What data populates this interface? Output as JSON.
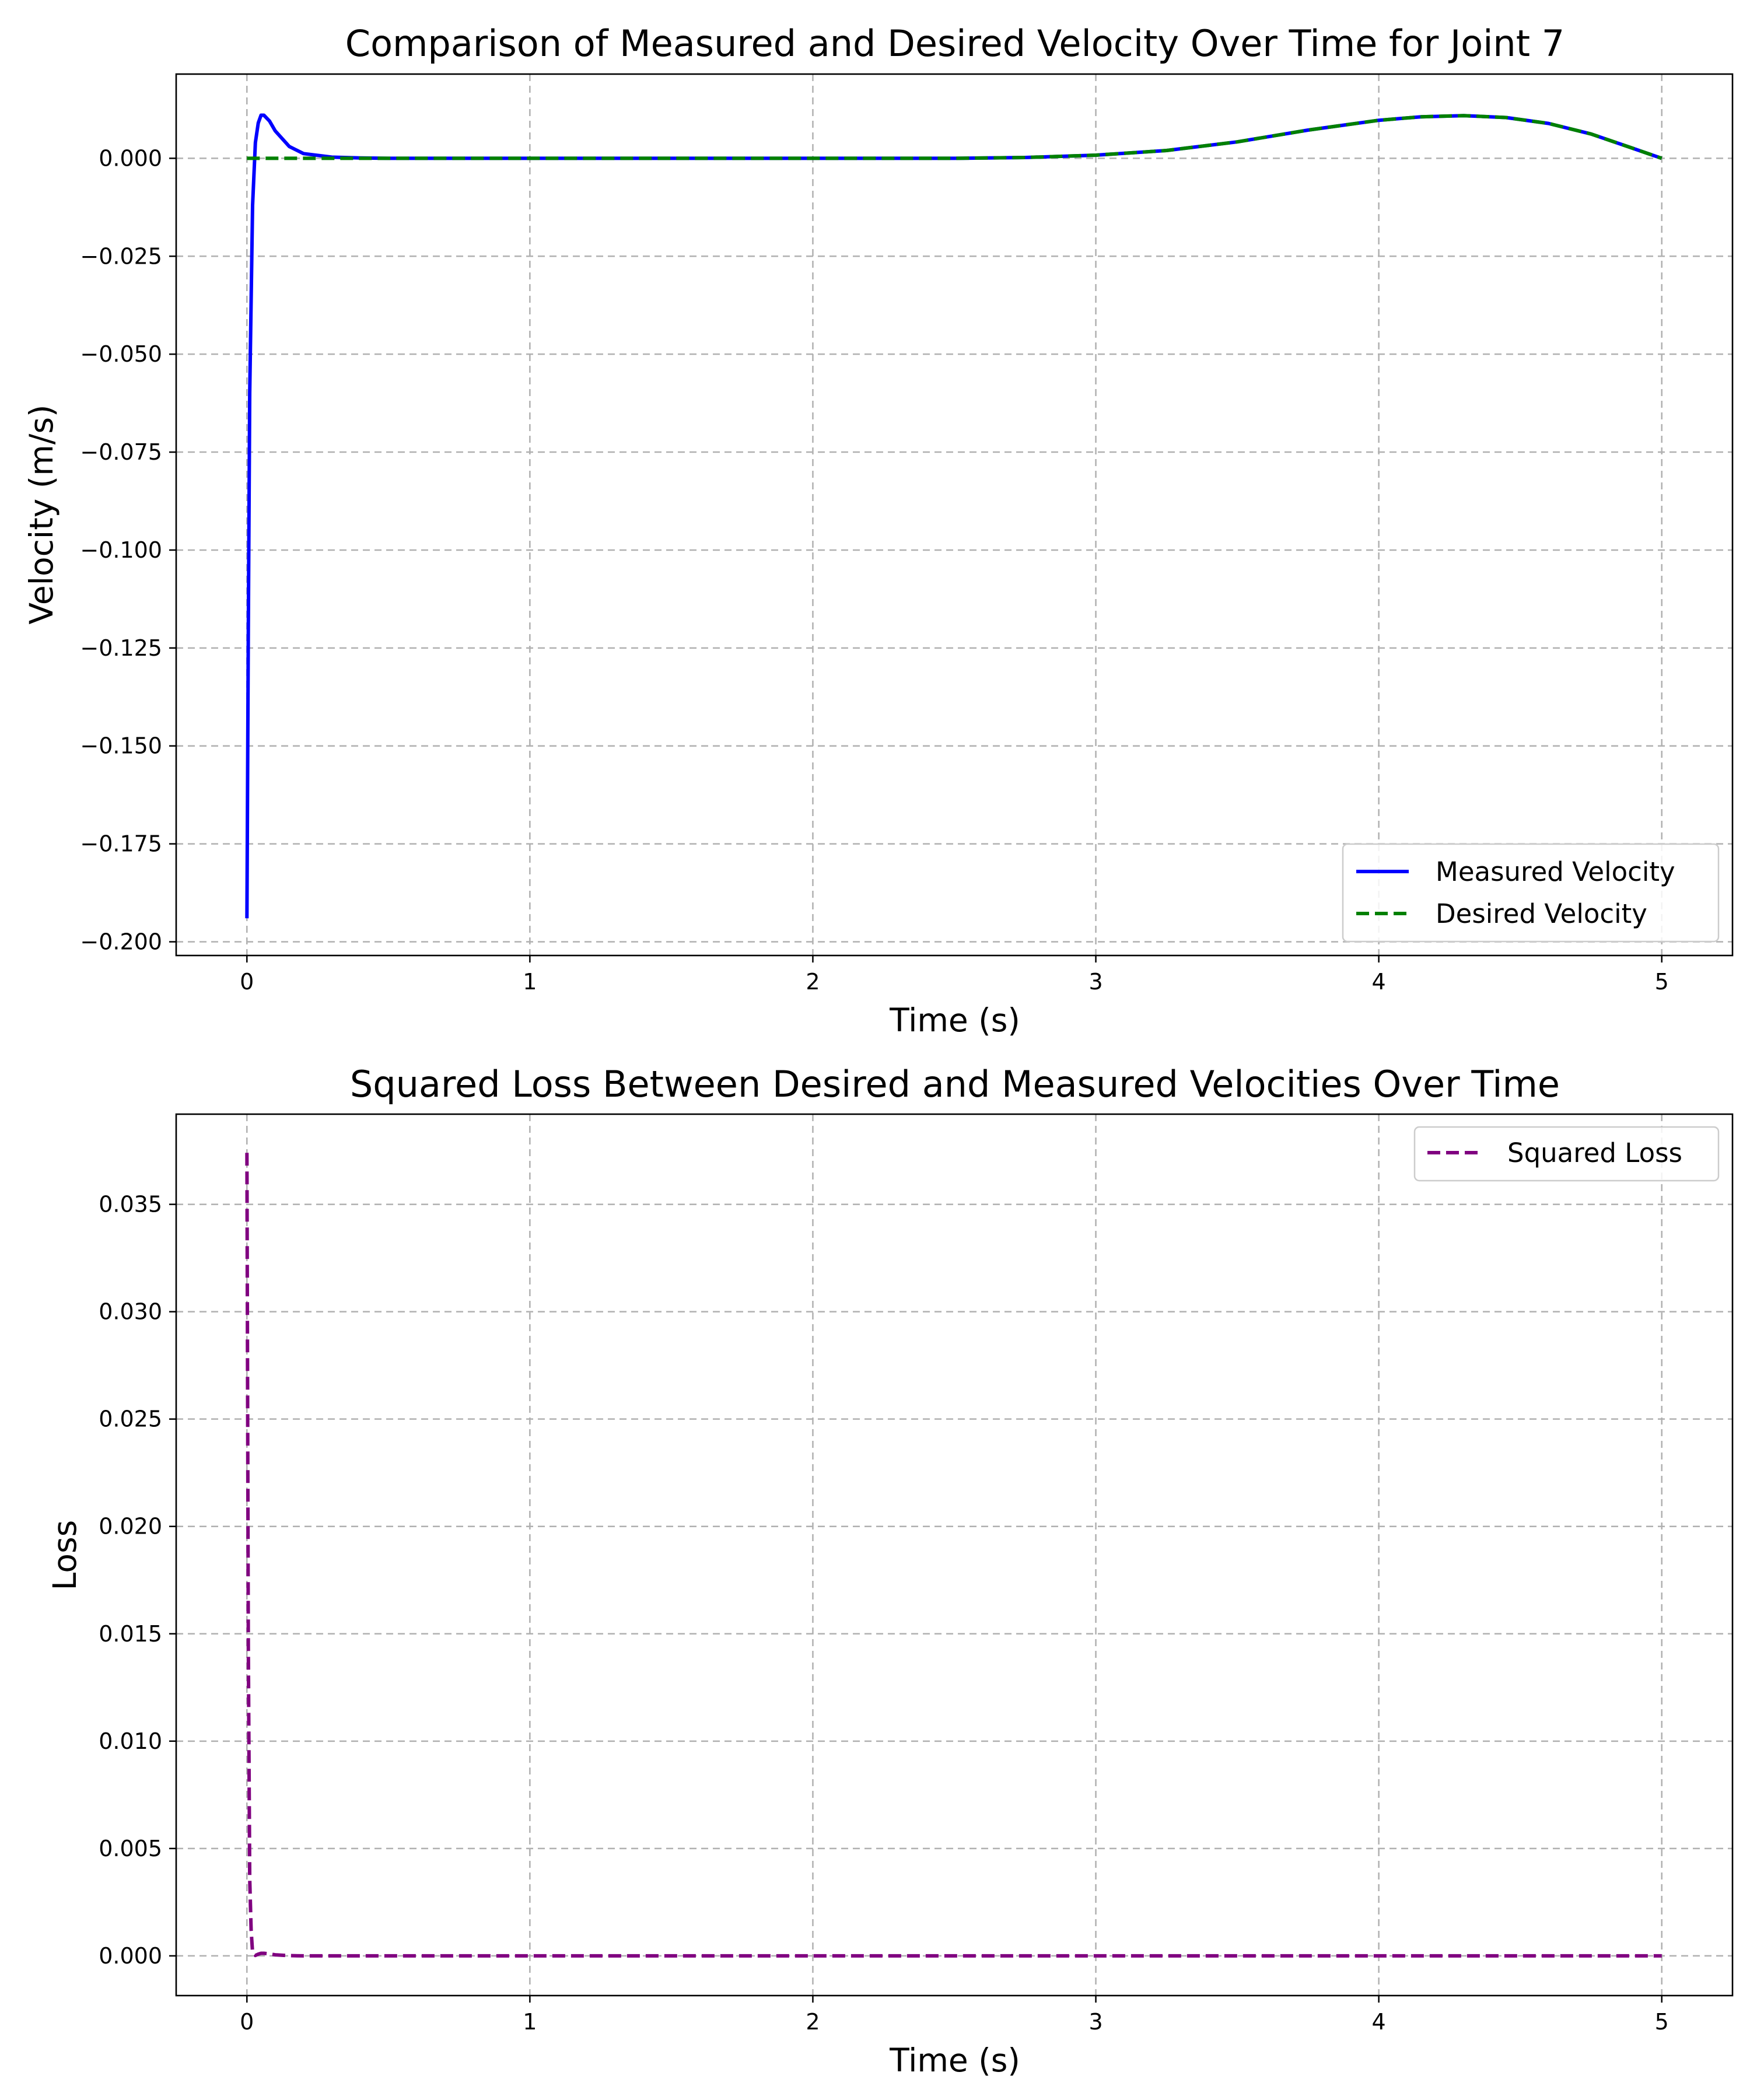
{
  "chart_data": [
    {
      "type": "line",
      "title": "Comparison of Measured and Desired Velocity Over Time for Joint 7",
      "xlabel": "Time (s)",
      "ylabel": "Velocity (m/s)",
      "xlim": [
        -0.25,
        5.25
      ],
      "ylim": [
        -0.2035,
        0.0215
      ],
      "xticks": [
        0,
        1,
        2,
        3,
        4,
        5
      ],
      "xtick_labels": [
        "0",
        "1",
        "2",
        "3",
        "4",
        "5"
      ],
      "yticks": [
        0.0,
        -0.025,
        -0.05,
        -0.075,
        -0.1,
        -0.125,
        -0.15,
        -0.175,
        -0.2
      ],
      "ytick_labels": [
        "0.000",
        "−0.025",
        "−0.050",
        "−0.075",
        "−0.100",
        "−0.125",
        "−0.150",
        "−0.175",
        "−0.200"
      ],
      "grid": true,
      "legend_position": "lower-right",
      "series": [
        {
          "name": "Measured Velocity",
          "color": "#0000ff",
          "style": "solid",
          "x": [
            0,
            0.005,
            0.01,
            0.02,
            0.03,
            0.04,
            0.05,
            0.06,
            0.08,
            0.1,
            0.15,
            0.2,
            0.3,
            0.4,
            0.5,
            1.0,
            1.5,
            2.0,
            2.5,
            2.75,
            3.0,
            3.25,
            3.5,
            3.75,
            4.0,
            4.15,
            4.3,
            4.45,
            4.6,
            4.75,
            4.9,
            5.0
          ],
          "y": [
            -0.194,
            -0.12,
            -0.06,
            -0.012,
            0.004,
            0.009,
            0.011,
            0.011,
            0.0095,
            0.007,
            0.003,
            0.0012,
            0.0003,
            0.0001,
            0.0,
            0.0,
            0.0,
            0.0,
            0.0,
            0.0002,
            0.0008,
            0.002,
            0.0042,
            0.0072,
            0.0097,
            0.0106,
            0.0109,
            0.0104,
            0.0089,
            0.0062,
            0.0025,
            0.0
          ]
        },
        {
          "name": "Desired Velocity",
          "color": "#008000",
          "style": "dashed",
          "x": [
            0,
            0.5,
            1.0,
            1.5,
            2.0,
            2.5,
            2.75,
            3.0,
            3.25,
            3.5,
            3.75,
            4.0,
            4.15,
            4.3,
            4.45,
            4.6,
            4.75,
            4.9,
            5.0
          ],
          "y": [
            0.0,
            0.0,
            0.0,
            0.0,
            0.0,
            0.0,
            0.0002,
            0.0008,
            0.002,
            0.0042,
            0.0072,
            0.0097,
            0.0106,
            0.0109,
            0.0104,
            0.0089,
            0.0062,
            0.0025,
            0.0
          ]
        }
      ]
    },
    {
      "type": "line",
      "title": "Squared Loss Between Desired and Measured Velocities Over Time",
      "xlabel": "Time (s)",
      "ylabel": "Loss",
      "xlim": [
        -0.25,
        5.25
      ],
      "ylim": [
        -0.00185,
        0.0392
      ],
      "xticks": [
        0,
        1,
        2,
        3,
        4,
        5
      ],
      "xtick_labels": [
        "0",
        "1",
        "2",
        "3",
        "4",
        "5"
      ],
      "yticks": [
        0.0,
        0.005,
        0.01,
        0.015,
        0.02,
        0.025,
        0.03,
        0.035
      ],
      "ytick_labels": [
        "0.000",
        "0.005",
        "0.010",
        "0.015",
        "0.020",
        "0.025",
        "0.030",
        "0.035"
      ],
      "grid": true,
      "legend_position": "upper-right",
      "series": [
        {
          "name": "Squared Loss",
          "color": "#800080",
          "style": "dashed",
          "x": [
            0,
            0.005,
            0.01,
            0.015,
            0.02,
            0.03,
            0.04,
            0.05,
            0.06,
            0.08,
            0.1,
            0.15,
            0.2,
            0.3,
            0.5,
            1.0,
            2.0,
            3.0,
            4.0,
            5.0
          ],
          "y": [
            0.0374,
            0.0144,
            0.0036,
            0.0012,
            0.00015,
            2e-05,
            8e-05,
            0.00012,
            0.00012,
            9e-05,
            5e-05,
            1e-05,
            0.0,
            0.0,
            0.0,
            0.0,
            0.0,
            0.0,
            0.0,
            0.0
          ]
        }
      ]
    }
  ]
}
